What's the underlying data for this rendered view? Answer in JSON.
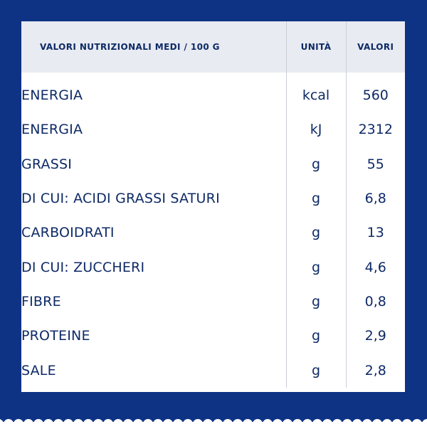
{
  "table": {
    "headers": {
      "nutrient": "VALORI NUTRIZIONALI MEDI / 100 G",
      "unit": "UNITÀ",
      "value": "VALORI"
    },
    "rows": [
      {
        "nutrient": "ENERGIA",
        "unit": "kcal",
        "value": "560"
      },
      {
        "nutrient": "ENERGIA",
        "unit": "kJ",
        "value": "2312"
      },
      {
        "nutrient": "GRASSI",
        "unit": "g",
        "value": "55"
      },
      {
        "nutrient": "DI CUI: ACIDI GRASSI SATURI",
        "unit": "g",
        "value": "6,8"
      },
      {
        "nutrient": "CARBOIDRATI",
        "unit": "g",
        "value": "13"
      },
      {
        "nutrient": "DI CUI: ZUCCHERI",
        "unit": "g",
        "value": "4,6"
      },
      {
        "nutrient": "FIBRE",
        "unit": "g",
        "value": "0,8"
      },
      {
        "nutrient": "PROTEINE",
        "unit": "g",
        "value": "2,9"
      },
      {
        "nutrient": "SALE",
        "unit": "g",
        "value": "2,8"
      }
    ]
  },
  "colors": {
    "background": "#0e3384",
    "panel": "#ffffff",
    "header_band": "#e8ebf1",
    "text": "#0e2a66",
    "divider": "#c9ceda"
  }
}
